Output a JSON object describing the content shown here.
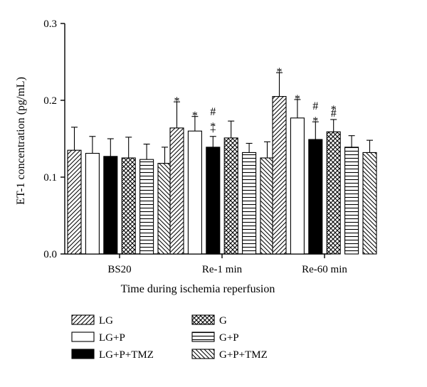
{
  "chart_data": {
    "type": "bar",
    "xlabel": "Time during ischemia reperfusion",
    "ylabel": "ET-1 concentration (pg/mL)",
    "ylim": [
      0,
      0.3
    ],
    "yticks": [
      "0.0",
      "0.1",
      "0.2",
      "0.3"
    ],
    "ytick_values": [
      0,
      0.1,
      0.2,
      0.3
    ],
    "categories": [
      "BS20",
      "Re-1 min",
      "Re-60 min"
    ],
    "series": [
      {
        "name": "LG",
        "pattern": "hatch-forward",
        "values": [
          0.135,
          0.164,
          0.205
        ],
        "errors": [
          0.03,
          0.034,
          0.031
        ],
        "annotations": [
          "",
          "*",
          "*"
        ]
      },
      {
        "name": "LG+P",
        "pattern": "open",
        "values": [
          0.131,
          0.16,
          0.177
        ],
        "errors": [
          0.022,
          0.019,
          0.024
        ],
        "annotations": [
          "",
          "*",
          "*"
        ]
      },
      {
        "name": "LG+P+TMZ",
        "pattern": "solid",
        "values": [
          0.127,
          0.139,
          0.149
        ],
        "errors": [
          0.023,
          0.014,
          0.023
        ],
        "annotations": [
          "",
          "#\n*\n+",
          "#\n*"
        ]
      },
      {
        "name": "G",
        "pattern": "crosshatch",
        "values": [
          0.125,
          0.151,
          0.159
        ],
        "errors": [
          0.027,
          0.022,
          0.016
        ],
        "annotations": [
          "",
          "",
          "*\n#"
        ]
      },
      {
        "name": "G+P",
        "pattern": "horizontal",
        "values": [
          0.123,
          0.132,
          0.139
        ],
        "errors": [
          0.02,
          0.012,
          0.015
        ],
        "annotations": [
          "",
          "",
          ""
        ]
      },
      {
        "name": "G+P+TMZ",
        "pattern": "hatch-back",
        "values": [
          0.118,
          0.125,
          0.132
        ],
        "errors": [
          0.021,
          0.021,
          0.016
        ],
        "annotations": [
          "",
          "",
          ""
        ]
      }
    ],
    "legend_position": "bottom"
  }
}
